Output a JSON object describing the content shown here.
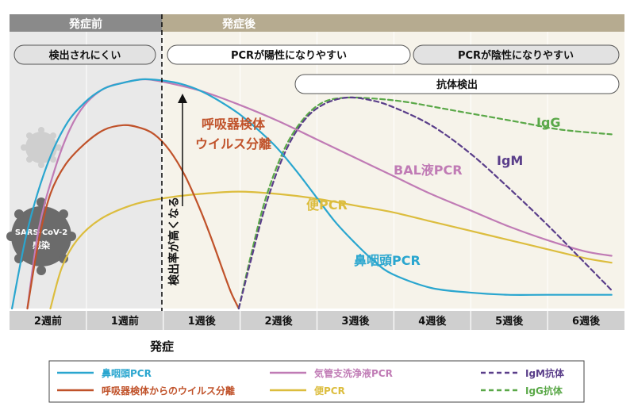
{
  "header": {
    "before_onset": "発症前",
    "after_onset": "発症後"
  },
  "phases": {
    "hard_to_detect": "検出されにくい",
    "pcr_positive": "PCRが陽性になりやすい",
    "pcr_negative": "PCRが陰性になりやすい",
    "antibody_detected": "抗体検出"
  },
  "virus_icon": {
    "label_line1": "SARS-CoV-2",
    "label_line2": "感染"
  },
  "arrow_label": "検出率が高くなる",
  "onset_label": "発症",
  "curve_labels": {
    "respiratory_line1": "呼吸器検体",
    "respiratory_line2": "ウイルス分離",
    "bal": "BAL液PCR",
    "igm": "IgM",
    "igg": "IgG",
    "stool": "便PCR",
    "nasopharyngeal": "鼻咽頭PCR"
  },
  "colors": {
    "nasopharyngeal": "#2aa6cf",
    "respiratory": "#c0522a",
    "bal": "#c07bb5",
    "stool": "#dcbd3e",
    "igm": "#5a3e8a",
    "igg": "#5aa848",
    "header_before": "#8a8a8a",
    "header_after": "#b6ab90",
    "plot_before": "#e9e9e9",
    "plot_after": "#f6f3ea",
    "axis_bar": "#cfcfcf"
  },
  "chart_data": {
    "type": "line",
    "x_unit": "週",
    "x_ticks": [
      "2週前",
      "1週前",
      "1週後",
      "2週後",
      "3週後",
      "4週後",
      "5週後",
      "6週後"
    ],
    "y_range": [
      0,
      1
    ],
    "series": [
      {
        "key": "nasopharyngeal",
        "name": "鼻咽頭PCR",
        "dash": "solid",
        "points": [
          [
            -1.95,
            0.0
          ],
          [
            -1.75,
            0.34
          ],
          [
            -1.5,
            0.62
          ],
          [
            -1.25,
            0.8
          ],
          [
            -1.0,
            0.9
          ],
          [
            -0.75,
            0.96
          ],
          [
            -0.5,
            0.985
          ],
          [
            -0.25,
            1.0
          ],
          [
            0.0,
            0.995
          ],
          [
            0.25,
            0.98
          ],
          [
            0.5,
            0.95
          ],
          [
            0.75,
            0.905
          ],
          [
            1.0,
            0.85
          ],
          [
            1.25,
            0.78
          ],
          [
            1.5,
            0.7
          ],
          [
            1.75,
            0.6
          ],
          [
            2.0,
            0.49
          ],
          [
            2.25,
            0.38
          ],
          [
            2.5,
            0.29
          ],
          [
            2.75,
            0.21
          ],
          [
            3.0,
            0.15
          ],
          [
            3.5,
            0.09
          ],
          [
            4.0,
            0.07
          ],
          [
            4.5,
            0.06
          ],
          [
            5.0,
            0.06
          ],
          [
            5.85,
            0.06
          ]
        ]
      },
      {
        "key": "respiratory",
        "name": "呼吸器検体からのウイルス分離",
        "dash": "solid",
        "points": [
          [
            -1.75,
            0.0
          ],
          [
            -1.6,
            0.3
          ],
          [
            -1.45,
            0.5
          ],
          [
            -1.25,
            0.63
          ],
          [
            -1.0,
            0.72
          ],
          [
            -0.75,
            0.78
          ],
          [
            -0.5,
            0.8
          ],
          [
            -0.3,
            0.79
          ],
          [
            -0.1,
            0.76
          ],
          [
            0.1,
            0.69
          ],
          [
            0.3,
            0.58
          ],
          [
            0.5,
            0.43
          ],
          [
            0.65,
            0.3
          ],
          [
            0.8,
            0.16
          ],
          [
            0.9,
            0.07
          ],
          [
            1.0,
            0.0
          ]
        ]
      },
      {
        "key": "bal",
        "name": "気管支洗浄液PCR",
        "dash": "solid",
        "points": [
          [
            -1.75,
            0.0
          ],
          [
            -1.6,
            0.35
          ],
          [
            -1.4,
            0.6
          ],
          [
            -1.2,
            0.78
          ],
          [
            -1.0,
            0.89
          ],
          [
            -0.75,
            0.96
          ],
          [
            -0.5,
            0.985
          ],
          [
            -0.25,
            1.0
          ],
          [
            0.0,
            0.99
          ],
          [
            0.5,
            0.95
          ],
          [
            1.0,
            0.89
          ],
          [
            1.5,
            0.82
          ],
          [
            2.0,
            0.74
          ],
          [
            2.5,
            0.66
          ],
          [
            3.0,
            0.58
          ],
          [
            3.5,
            0.5
          ],
          [
            4.0,
            0.43
          ],
          [
            4.5,
            0.36
          ],
          [
            5.0,
            0.3
          ],
          [
            5.5,
            0.25
          ],
          [
            5.85,
            0.23
          ]
        ]
      },
      {
        "key": "stool",
        "name": "便PCR",
        "dash": "solid",
        "points": [
          [
            -1.45,
            0.0
          ],
          [
            -1.3,
            0.18
          ],
          [
            -1.1,
            0.3
          ],
          [
            -0.8,
            0.39
          ],
          [
            -0.4,
            0.45
          ],
          [
            0.0,
            0.48
          ],
          [
            0.5,
            0.5
          ],
          [
            1.0,
            0.51
          ],
          [
            1.5,
            0.5
          ],
          [
            2.0,
            0.48
          ],
          [
            2.5,
            0.45
          ],
          [
            3.0,
            0.42
          ],
          [
            3.5,
            0.38
          ],
          [
            4.0,
            0.34
          ],
          [
            4.5,
            0.3
          ],
          [
            5.0,
            0.26
          ],
          [
            5.5,
            0.22
          ],
          [
            5.85,
            0.2
          ]
        ]
      },
      {
        "key": "igm",
        "name": "IgM抗体",
        "dash": "dashed",
        "points": [
          [
            1.0,
            0.0
          ],
          [
            1.15,
            0.2
          ],
          [
            1.35,
            0.45
          ],
          [
            1.6,
            0.68
          ],
          [
            1.85,
            0.82
          ],
          [
            2.1,
            0.89
          ],
          [
            2.4,
            0.92
          ],
          [
            2.7,
            0.91
          ],
          [
            3.0,
            0.88
          ],
          [
            3.5,
            0.8
          ],
          [
            4.0,
            0.68
          ],
          [
            4.5,
            0.53
          ],
          [
            5.0,
            0.37
          ],
          [
            5.5,
            0.2
          ],
          [
            5.85,
            0.08
          ]
        ]
      },
      {
        "key": "igg",
        "name": "IgG抗体",
        "dash": "dashed",
        "points": [
          [
            1.0,
            0.0
          ],
          [
            1.15,
            0.22
          ],
          [
            1.35,
            0.48
          ],
          [
            1.6,
            0.7
          ],
          [
            1.85,
            0.83
          ],
          [
            2.1,
            0.9
          ],
          [
            2.4,
            0.92
          ],
          [
            2.8,
            0.915
          ],
          [
            3.2,
            0.9
          ],
          [
            3.7,
            0.87
          ],
          [
            4.2,
            0.84
          ],
          [
            4.7,
            0.81
          ],
          [
            5.2,
            0.78
          ],
          [
            5.85,
            0.76
          ]
        ]
      }
    ]
  },
  "legend": [
    {
      "key": "nasopharyngeal",
      "label": "鼻咽頭PCR",
      "dash": "solid"
    },
    {
      "key": "bal",
      "label": "気管支洗浄液PCR",
      "dash": "solid"
    },
    {
      "key": "igm",
      "label": "IgM抗体",
      "dash": "dashed"
    },
    {
      "key": "respiratory",
      "label": "呼吸器検体からのウイルス分離",
      "dash": "solid"
    },
    {
      "key": "stool",
      "label": "便PCR",
      "dash": "solid"
    },
    {
      "key": "igg",
      "label": "IgG抗体",
      "dash": "dashed"
    }
  ]
}
